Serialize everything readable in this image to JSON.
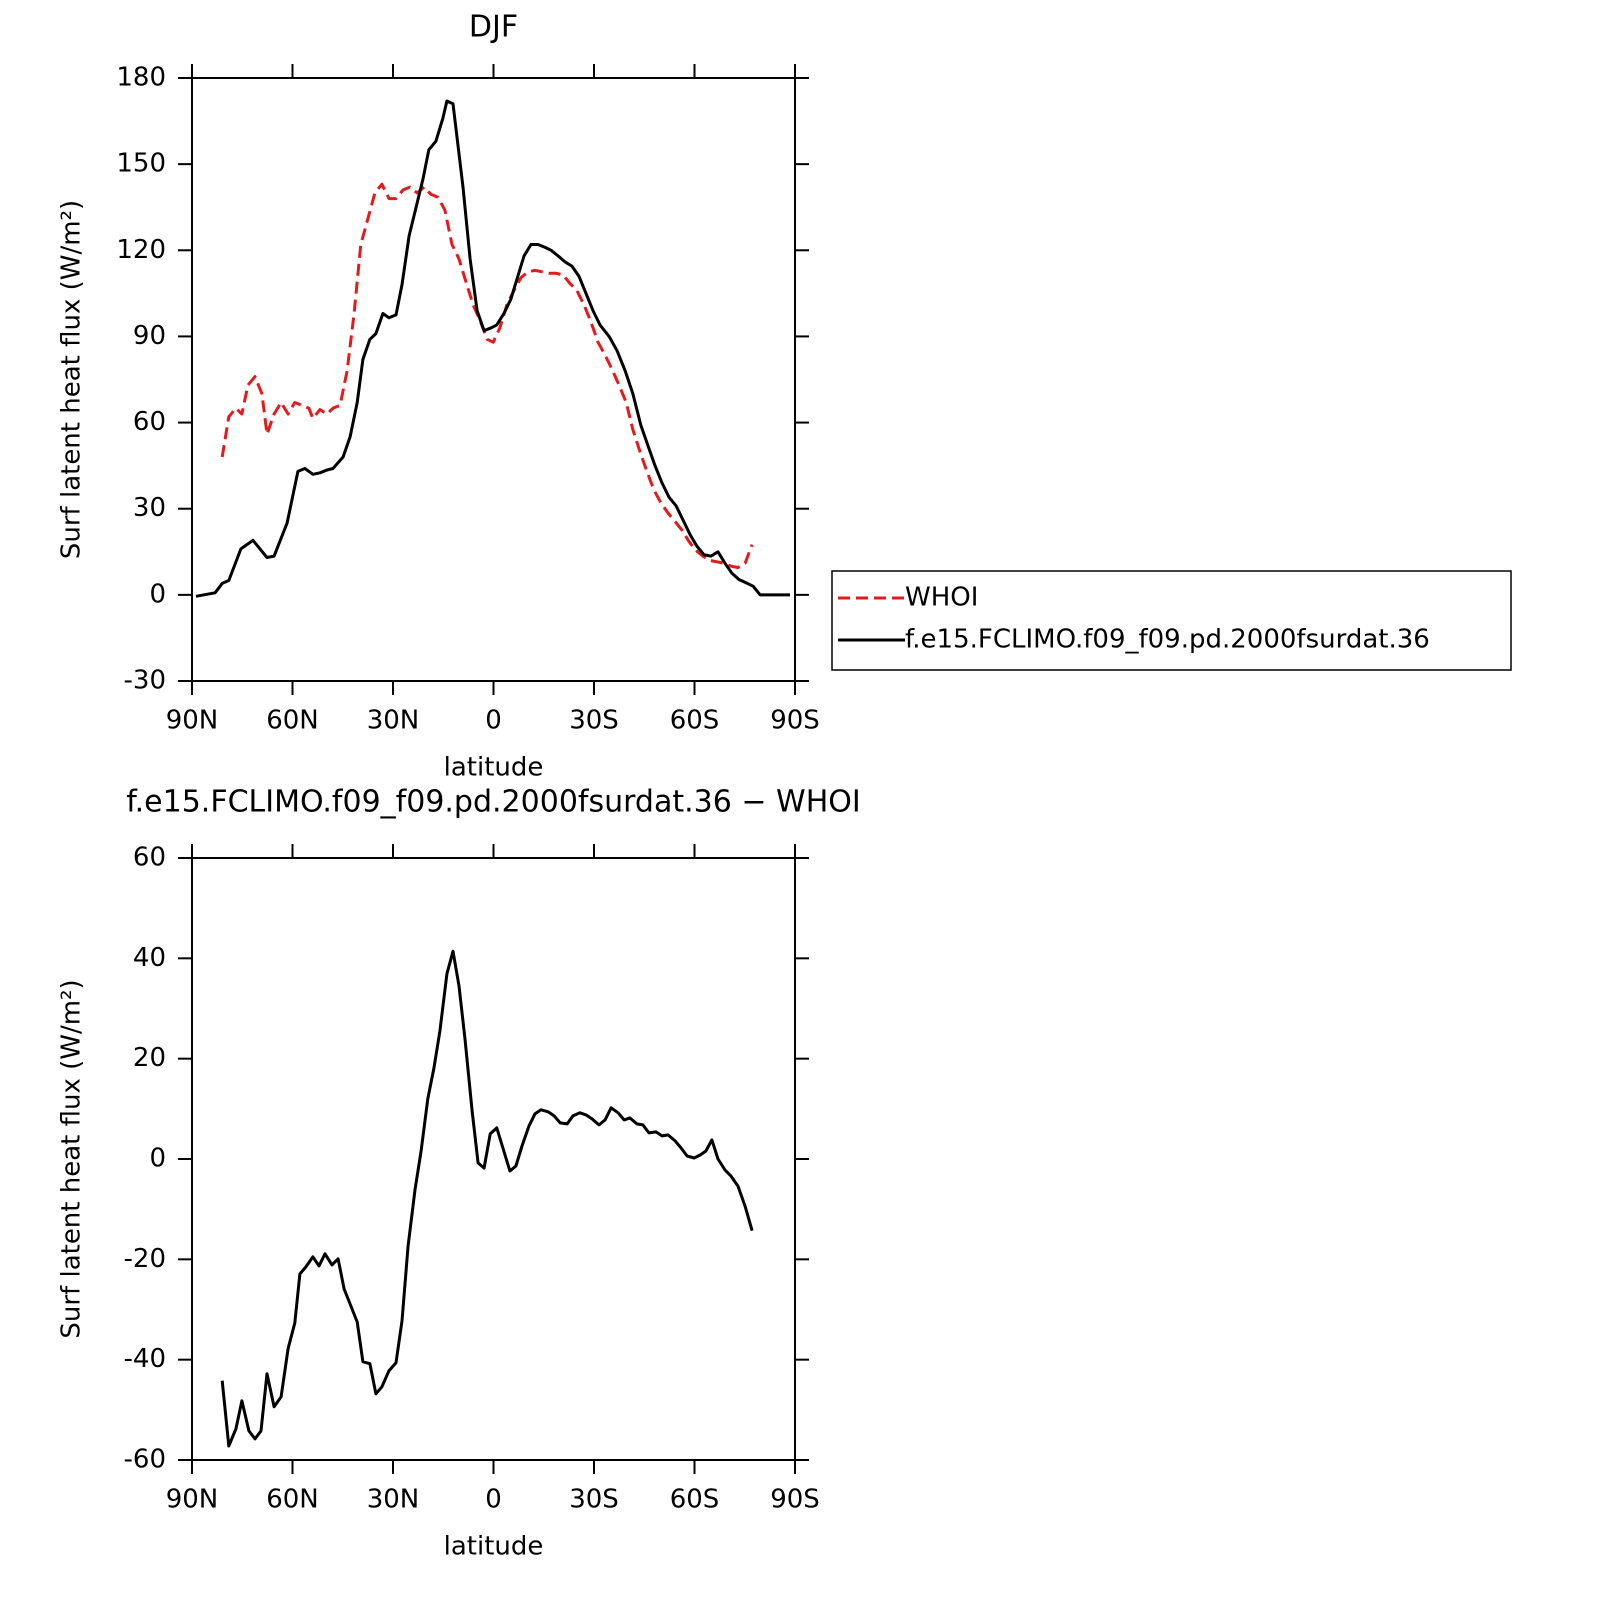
{
  "chart_data": [
    {
      "type": "line",
      "title": "DJF",
      "xlabel": "latitude",
      "ylabel": "Surf latent heat flux (W/m²)",
      "xlim": [
        90,
        -90
      ],
      "xticks": [
        {
          "value": 90,
          "label": "90N"
        },
        {
          "value": 60,
          "label": "60N"
        },
        {
          "value": 30,
          "label": "30N"
        },
        0,
        {
          "value": -30,
          "label": "30S"
        },
        {
          "value": -60,
          "label": "60S"
        },
        {
          "value": -90,
          "label": "90S"
        }
      ],
      "ylim": [
        -30,
        180
      ],
      "yticks": [
        -30,
        0,
        30,
        60,
        90,
        120,
        150,
        180
      ],
      "legend": "right",
      "series": [
        {
          "name": "WHOI",
          "color": "#e41a1c",
          "dash": true,
          "x": [
            81,
            79,
            76.9,
            75.1,
            73.3,
            71.2,
            69.1,
            67.6,
            65.5,
            63.4,
            61.3,
            59.3,
            57.2,
            55.1,
            53.9,
            51.8,
            49.7,
            47.9,
            45.8,
            43.7,
            41.6,
            39.6,
            37.5,
            35.4,
            33.3,
            31.2,
            29.1,
            27,
            25,
            22.8,
            20.7,
            18.7,
            16.6,
            14.5,
            12.4,
            10.3,
            8.2,
            6.1,
            4,
            1.9,
            0.1,
            -1.9,
            -4,
            -6.1,
            -8.2,
            -10.3,
            -12.4,
            -14.5,
            -16.6,
            -18.7,
            -20.7,
            -22.8,
            -24.9,
            -27,
            -29.1,
            -31.2,
            -33.3,
            -35.4,
            -37.5,
            -39.6,
            -41.6,
            -43.7,
            -45.8,
            -47.9,
            -50,
            -52.1,
            -54.2,
            -56.3,
            -58.4,
            -60.4,
            -62.5,
            -64.6,
            -66.7,
            -68.8,
            -70.9,
            -73,
            -75.1,
            -77.2
          ],
          "values": [
            48,
            62,
            65,
            63,
            73,
            76,
            70,
            56,
            63,
            67,
            63,
            67,
            66,
            65,
            61.5,
            64.5,
            63,
            65,
            66,
            78,
            98,
            122,
            131,
            140,
            143,
            138,
            138,
            141,
            142,
            140,
            142,
            139.5,
            138.5,
            134,
            122,
            117,
            109,
            101,
            95.5,
            89,
            88,
            93,
            101,
            106,
            110.5,
            112.5,
            113,
            112.5,
            112,
            112,
            111.5,
            108.5,
            106,
            101,
            95,
            88,
            83.5,
            78.5,
            73,
            67,
            57.5,
            50,
            43,
            36.5,
            32,
            28.5,
            25.5,
            22.5,
            18.5,
            15.5,
            13.5,
            12,
            11.5,
            11,
            10,
            9.5,
            11,
            17.5
          ]
        },
        {
          "name": "f.e15.FCLIMO.f09_f09.pd.2000fsurdat.36",
          "color": "#000000",
          "dash": false,
          "x": [
            88.8,
            83.1,
            81,
            79,
            75.4,
            71.8,
            69.7,
            67.6,
            65.5,
            61.6,
            58.4,
            56.3,
            53.9,
            51.8,
            49.7,
            47.9,
            44.9,
            42.8,
            40.7,
            39,
            36.9,
            35.1,
            33,
            31.2,
            29.1,
            27.3,
            25.2,
            23.1,
            21,
            19.3,
            17.2,
            15.1,
            13.9,
            12.1,
            9.1,
            7,
            4.9,
            2.8,
            0.7,
            -1,
            -3.1,
            -5.2,
            -7,
            -9.1,
            -11.2,
            -13.3,
            -15.4,
            -17.2,
            -19.3,
            -21.3,
            -23.4,
            -25.5,
            -27.6,
            -29.7,
            -31.8,
            -34.5,
            -36.9,
            -39.3,
            -41.6,
            -44,
            -46.1,
            -48.2,
            -50.3,
            -52.4,
            -54.5,
            -56.6,
            -58.7,
            -60.7,
            -62.8,
            -64.9,
            -67,
            -69.1,
            -71.2,
            -73.3,
            -75.4,
            -77.5,
            -79.6,
            -88.5
          ],
          "values": [
            -0.5,
            0.7,
            4,
            5,
            16,
            19,
            16,
            13,
            13.5,
            25,
            43,
            44,
            42,
            42.5,
            43.5,
            44,
            48,
            55,
            67,
            82,
            89,
            91,
            98,
            96.5,
            97.5,
            108,
            125,
            135,
            145,
            155,
            158,
            166,
            172,
            171,
            142,
            117,
            99,
            92,
            93,
            94,
            98,
            103,
            110,
            118,
            122,
            122,
            121,
            120,
            118,
            116,
            114.5,
            111,
            105,
            99,
            94,
            90,
            85,
            78,
            70,
            59,
            52,
            45,
            39,
            34,
            31,
            26,
            21,
            17,
            14,
            13.5,
            15,
            11,
            7.5,
            5.3,
            4.2,
            3,
            0,
            0
          ]
        }
      ]
    },
    {
      "type": "line",
      "title": "f.e15.FCLIMO.f09_f09.pd.2000fsurdat.36 − WHOI",
      "xlabel": "latitude",
      "ylabel": "Surf latent heat flux (W/m²)",
      "xlim": [
        90,
        -90
      ],
      "xticks": [
        {
          "value": 90,
          "label": "90N"
        },
        {
          "value": 60,
          "label": "60N"
        },
        {
          "value": 30,
          "label": "30N"
        },
        0,
        {
          "value": -30,
          "label": "30S"
        },
        {
          "value": -60,
          "label": "60S"
        },
        {
          "value": -90,
          "label": "90S"
        }
      ],
      "ylim": [
        -60,
        60
      ],
      "yticks": [
        -60,
        -40,
        -20,
        0,
        20,
        40,
        60
      ],
      "color": "#000000",
      "x": [
        81,
        79,
        76.9,
        75.1,
        73,
        71.2,
        69.4,
        67.6,
        65.5,
        63.4,
        61.3,
        59.3,
        57.8,
        56,
        53.9,
        52.1,
        50.3,
        48.2,
        46.4,
        44.6,
        42.8,
        40.7,
        39,
        36.9,
        35.1,
        33.3,
        31.2,
        29.1,
        27.3,
        25.5,
        23.4,
        21.6,
        19.6,
        17.8,
        16,
        13.9,
        12.1,
        10.3,
        8.5,
        6.4,
        4.6,
        2.8,
        1,
        -1,
        -2.8,
        -4.9,
        -6.7,
        -8.5,
        -10.6,
        -12.4,
        -14.2,
        -16.3,
        -18.1,
        -19.9,
        -22,
        -23.7,
        -25.8,
        -27.6,
        -29.4,
        -31.5,
        -33.3,
        -35.1,
        -37.2,
        -39,
        -40.7,
        -42.8,
        -44.6,
        -46.4,
        -48.5,
        -50.3,
        -52.1,
        -54.2,
        -56,
        -57.8,
        -59.9,
        -61.7,
        -63.4,
        -65.2,
        -67,
        -69.1,
        -70.9,
        -73,
        -75.1,
        -77.2
      ],
      "values": [
        -44.2,
        -57.2,
        -53.8,
        -48.2,
        -54.2,
        -55.8,
        -54.2,
        -42.8,
        -49.4,
        -47.4,
        -37.8,
        -32.7,
        -22.9,
        -21.5,
        -19.5,
        -21.3,
        -18.9,
        -21.1,
        -19.9,
        -25.9,
        -28.9,
        -32.5,
        -40.4,
        -40.8,
        -46.8,
        -45.4,
        -42.2,
        -40.6,
        -32.3,
        -17.3,
        -6,
        1.6,
        12,
        18.1,
        25.5,
        36.9,
        41.4,
        34.5,
        23.9,
        9.6,
        -0.8,
        -1.8,
        5,
        6.2,
        2.2,
        -2.4,
        -1.4,
        2.6,
        6.6,
        9,
        9.8,
        9.4,
        8.6,
        7.2,
        7,
        8.6,
        9.2,
        8.8,
        8,
        6.8,
        7.8,
        10.2,
        9.2,
        7.8,
        8.2,
        7,
        6.8,
        5.2,
        5.4,
        4.6,
        4.8,
        3.6,
        2.2,
        0.6,
        0.2,
        0.8,
        1.6,
        3.8,
        0,
        -2.2,
        -3.4,
        -5.4,
        -9.4,
        -14.3
      ]
    }
  ]
}
